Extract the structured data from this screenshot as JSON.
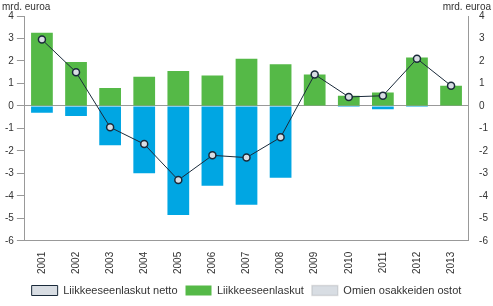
{
  "chart_data": {
    "type": "bar",
    "stacked": true,
    "ylabel": "mrd. euroa",
    "y2label": "mrd. euroa",
    "categories": [
      "2001",
      "2002",
      "2003",
      "2004",
      "2005",
      "2006",
      "2007",
      "2008",
      "2009",
      "2010",
      "2011",
      "2012",
      "2013"
    ],
    "series": [
      {
        "name": "Liikkeeseenlaskut",
        "type": "bar",
        "color": "#55b947",
        "values": [
          3.25,
          1.95,
          0.8,
          1.3,
          1.55,
          1.35,
          2.1,
          1.85,
          1.4,
          0.45,
          0.6,
          2.15,
          0.9
        ]
      },
      {
        "name": "Omien osakkeiden ostot",
        "type": "bar",
        "color": "#00a6e3",
        "values": [
          -0.3,
          -0.45,
          -1.75,
          -3.0,
          -4.85,
          -3.55,
          -4.4,
          -3.2,
          0,
          -0.05,
          -0.15,
          -0.05,
          0
        ]
      },
      {
        "name": "Liikkeeseenlaskut netto",
        "type": "line",
        "color": "#1a2a3a",
        "marker": "circle",
        "values": [
          2.95,
          1.5,
          -0.95,
          -1.7,
          -3.3,
          -2.2,
          -2.3,
          -1.4,
          1.4,
          0.4,
          0.45,
          2.1,
          0.9
        ]
      }
    ],
    "ylim": [
      -6,
      4
    ],
    "yticks": [
      -6,
      -5,
      -4,
      -3,
      -2,
      -1,
      0,
      1,
      2,
      3,
      4
    ],
    "y2lim": [
      -6,
      4
    ],
    "y2ticks": [
      -6,
      -5,
      -4,
      -3,
      -2,
      -1,
      0,
      1,
      2,
      3,
      4
    ],
    "grid": false,
    "legend": "bottom"
  }
}
